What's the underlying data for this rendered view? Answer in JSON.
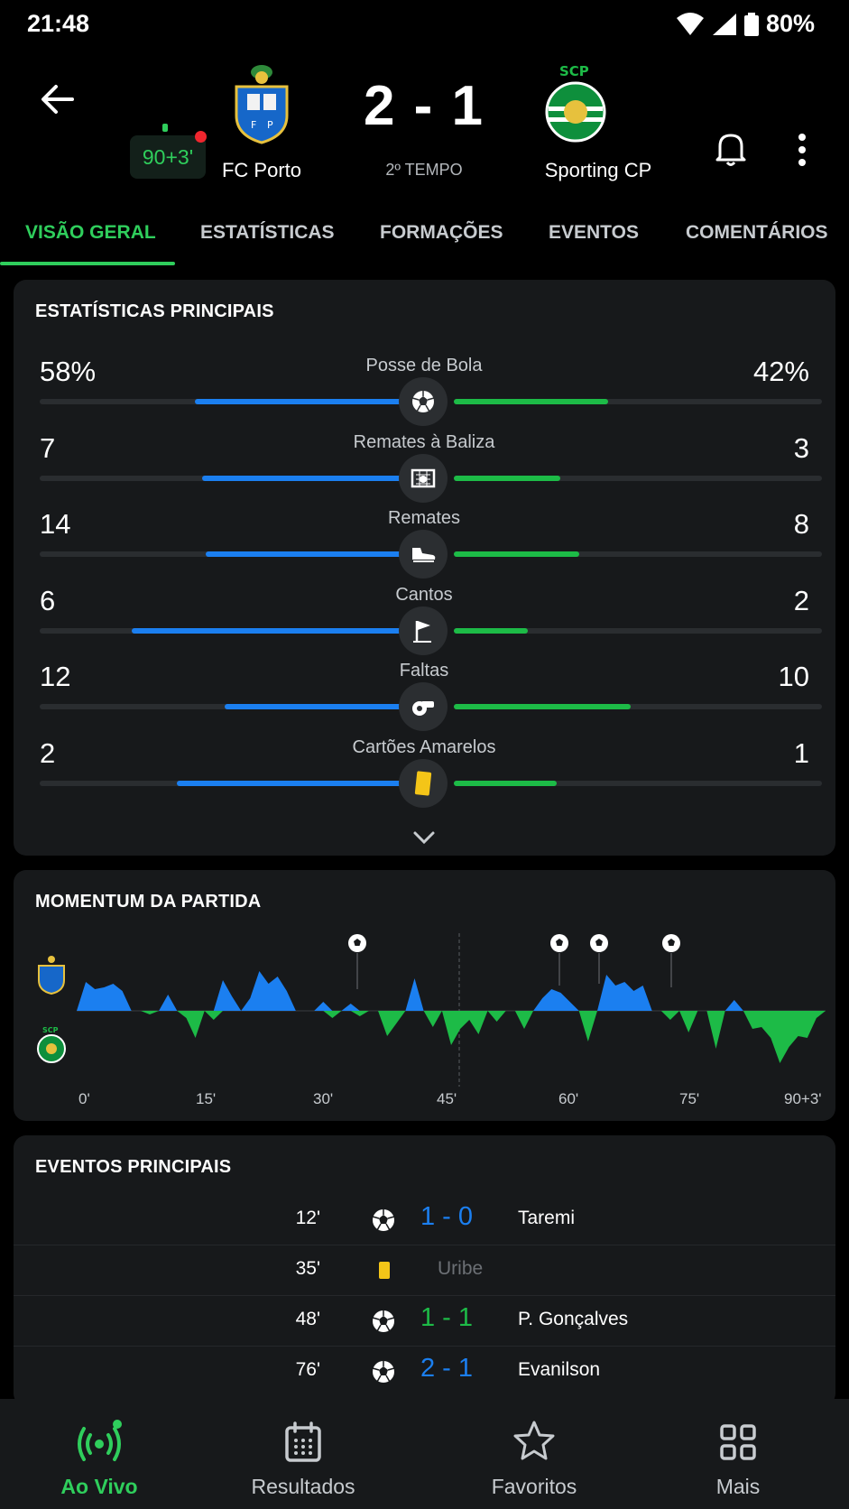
{
  "status_bar": {
    "time": "21:48",
    "battery": "80%"
  },
  "match": {
    "minute": "90+3'",
    "home_team": "FC Porto",
    "away_team": "Sporting CP",
    "score": "2 - 1",
    "period": "2º TEMPO"
  },
  "tabs": [
    {
      "label": "VISÃO GERAL",
      "active": true
    },
    {
      "label": "ESTATÍSTICAS",
      "active": false
    },
    {
      "label": "FORMAÇÕES",
      "active": false
    },
    {
      "label": "EVENTOS",
      "active": false
    },
    {
      "label": "COMENTÁRIOS",
      "active": false
    }
  ],
  "main_stats": {
    "title": "ESTATÍSTICAS PRINCIPAIS",
    "rows": [
      {
        "label": "Posse de Bola",
        "home": "58%",
        "away": "42%",
        "home_fill": 0.58,
        "away_fill": 0.42,
        "icon": "ball-icon"
      },
      {
        "label": "Remates à Baliza",
        "home": "7",
        "away": "3",
        "home_fill": 0.56,
        "away_fill": 0.29,
        "icon": "goal-net-icon"
      },
      {
        "label": "Remates",
        "home": "14",
        "away": "8",
        "home_fill": 0.55,
        "away_fill": 0.34,
        "icon": "boot-icon"
      },
      {
        "label": "Cantos",
        "home": "6",
        "away": "2",
        "home_fill": 0.75,
        "away_fill": 0.2,
        "icon": "corner-flag-icon"
      },
      {
        "label": "Faltas",
        "home": "12",
        "away": "10",
        "home_fill": 0.5,
        "away_fill": 0.48,
        "icon": "whistle-icon"
      },
      {
        "label": "Cartões Amarelos",
        "home": "2",
        "away": "1",
        "home_fill": 0.63,
        "away_fill": 0.28,
        "icon": "yellow-card-icon"
      }
    ]
  },
  "momentum": {
    "title": "MOMENTUM DA PARTIDA",
    "axis_labels": [
      "0'",
      "15'",
      "30'",
      "45'",
      "60'",
      "75'",
      "90+3'"
    ],
    "home_color": "#1b7ff0",
    "away_color": "#1dbb47"
  },
  "key_events": {
    "title": "EVENTOS PRINCIPAIS",
    "items": [
      {
        "minute": "12'",
        "type": "goal",
        "score": "1 - 0",
        "score_color": "#1b7ff0",
        "player": "Taremi"
      },
      {
        "minute": "35'",
        "type": "yellow-card",
        "score": "",
        "score_color": "",
        "player": "Uribe"
      },
      {
        "minute": "48'",
        "type": "goal",
        "score": "1 - 1",
        "score_color": "#1dbb47",
        "player": "P. Gonçalves"
      },
      {
        "minute": "76'",
        "type": "goal",
        "score": "2 - 1",
        "score_color": "#1b7ff0",
        "player": "Evanilson"
      }
    ]
  },
  "bottom_nav": [
    {
      "label": "Ao Vivo",
      "icon": "live-broadcast-icon",
      "active": true
    },
    {
      "label": "Resultados",
      "icon": "calendar-icon",
      "active": false
    },
    {
      "label": "Favoritos",
      "icon": "star-icon",
      "active": false
    },
    {
      "label": "Mais",
      "icon": "grid-icon",
      "active": false
    }
  ]
}
